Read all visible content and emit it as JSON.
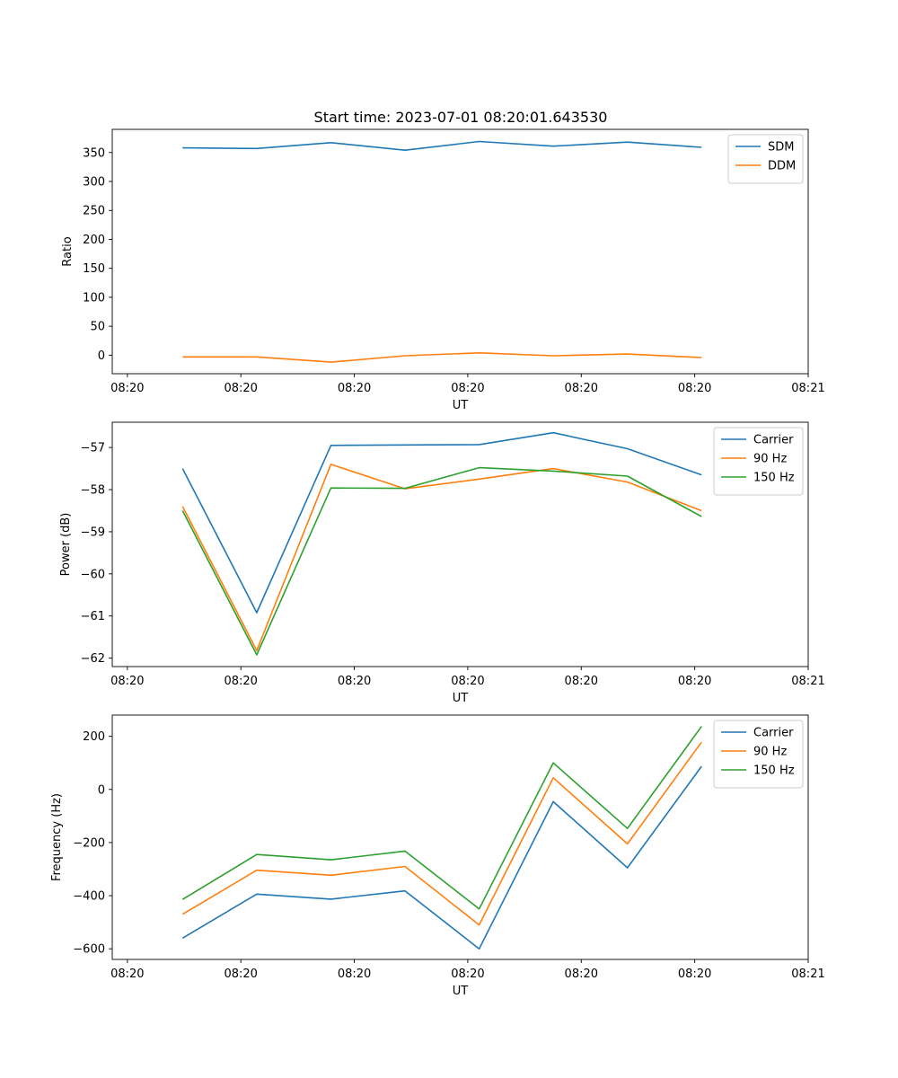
{
  "figure_title": "Start time: 2023-07-01 08:20:01.643530",
  "colors": {
    "blue": "#1f77b4",
    "orange": "#ff7f0e",
    "green": "#2ca02c"
  },
  "chart_data": [
    {
      "type": "line",
      "xlabel": "UT",
      "ylabel": "Ratio",
      "xlim": [
        0,
        9.2
      ],
      "ylim": [
        -32,
        390
      ],
      "x_ticks": [
        0.2,
        1.7,
        3.2,
        4.7,
        6.2,
        7.7,
        9.2
      ],
      "x_tick_labels": [
        "08:20",
        "08:20",
        "08:20",
        "08:20",
        "08:20",
        "08:20",
        "08:21"
      ],
      "y_ticks": [
        0,
        50,
        100,
        150,
        200,
        250,
        300,
        350
      ],
      "y_tick_labels": [
        "0",
        "50",
        "100",
        "150",
        "200",
        "250",
        "300",
        "350"
      ],
      "legend": "top-right",
      "x": [
        0.93,
        1.91,
        2.89,
        3.87,
        4.85,
        5.83,
        6.81,
        7.79
      ],
      "series": [
        {
          "name": "SDM",
          "color": "blue",
          "values": [
            358,
            357,
            367,
            354,
            369,
            361,
            368,
            359
          ]
        },
        {
          "name": "DDM",
          "color": "orange",
          "values": [
            -3,
            -3,
            -12,
            -1,
            4,
            -1,
            2,
            -4
          ]
        }
      ]
    },
    {
      "type": "line",
      "xlabel": "UT",
      "ylabel": "Power (dB)",
      "xlim": [
        0,
        9.2
      ],
      "ylim": [
        -62.2,
        -56.4
      ],
      "x_ticks": [
        0.2,
        1.7,
        3.2,
        4.7,
        6.2,
        7.7,
        9.2
      ],
      "x_tick_labels": [
        "08:20",
        "08:20",
        "08:20",
        "08:20",
        "08:20",
        "08:20",
        "08:21"
      ],
      "y_ticks": [
        -62,
        -61,
        -60,
        -59,
        -58,
        -57
      ],
      "y_tick_labels": [
        "−62",
        "−61",
        "−60",
        "−59",
        "−58",
        "−57"
      ],
      "legend": "top-right",
      "x": [
        0.93,
        1.91,
        2.89,
        3.87,
        4.85,
        5.83,
        6.81,
        7.79
      ],
      "series": [
        {
          "name": "Carrier",
          "color": "blue",
          "values": [
            -57.5,
            -60.92,
            -56.95,
            -56.94,
            -56.93,
            -56.65,
            -57.03,
            -57.65
          ]
        },
        {
          "name": "90 Hz",
          "color": "orange",
          "values": [
            -58.4,
            -61.82,
            -57.4,
            -57.98,
            -57.75,
            -57.5,
            -57.82,
            -58.5
          ]
        },
        {
          "name": "150 Hz",
          "color": "green",
          "values": [
            -58.5,
            -61.92,
            -57.96,
            -57.97,
            -57.48,
            -57.56,
            -57.68,
            -58.64
          ]
        }
      ]
    },
    {
      "type": "line",
      "xlabel": "UT",
      "ylabel": "Frequency (Hz)",
      "xlim": [
        0,
        9.2
      ],
      "ylim": [
        -640,
        280
      ],
      "x_ticks": [
        0.2,
        1.7,
        3.2,
        4.7,
        6.2,
        7.7,
        9.2
      ],
      "x_tick_labels": [
        "08:20",
        "08:20",
        "08:20",
        "08:20",
        "08:20",
        "08:20",
        "08:21"
      ],
      "y_ticks": [
        -600,
        -400,
        -200,
        0,
        200
      ],
      "y_tick_labels": [
        "−600",
        "−400",
        "−200",
        "0",
        "200"
      ],
      "legend": "top-right",
      "x": [
        0.93,
        1.91,
        2.89,
        3.87,
        4.85,
        5.83,
        6.81,
        7.79
      ],
      "series": [
        {
          "name": "Carrier",
          "color": "blue",
          "values": [
            -560,
            -394,
            -413,
            -382,
            -600,
            -46,
            -295,
            87
          ]
        },
        {
          "name": "90 Hz",
          "color": "orange",
          "values": [
            -470,
            -304,
            -323,
            -290,
            -510,
            44,
            -205,
            178
          ]
        },
        {
          "name": "150 Hz",
          "color": "green",
          "values": [
            -414,
            -245,
            -265,
            -232,
            -450,
            100,
            -147,
            237
          ]
        }
      ]
    }
  ]
}
